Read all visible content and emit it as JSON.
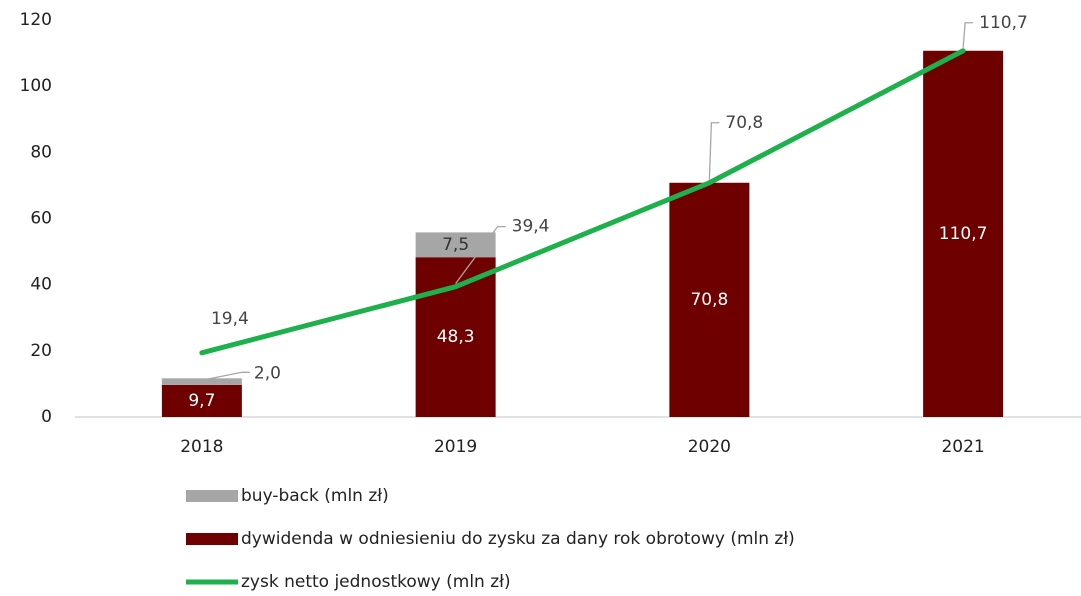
{
  "chart_data": {
    "type": "bar_line",
    "categories": [
      "2018",
      "2019",
      "2020",
      "2021"
    ],
    "series": [
      {
        "name": "buy-back (mln zł)",
        "type": "bar",
        "color": "#a6a6a6",
        "values": [
          2.0,
          7.5,
          null,
          null
        ],
        "value_labels": [
          "2,0",
          "7,5",
          null,
          null
        ]
      },
      {
        "name": "dywidenda w odniesieniu do zysku za dany rok obrotowy (mln zł)",
        "type": "bar",
        "color": "#6e0000",
        "values": [
          9.7,
          48.3,
          70.8,
          110.7
        ],
        "value_labels": [
          "9,7",
          "48,3",
          "70,8",
          "110,7"
        ]
      },
      {
        "name": "zysk netto jednostkowy (mln zł)",
        "type": "line",
        "color": "#1db04b",
        "values": [
          19.4,
          39.4,
          70.8,
          110.7
        ],
        "value_labels": [
          "19,4",
          "39,4",
          "70,8",
          "110,7"
        ]
      }
    ],
    "stacked": true,
    "ylim": [
      0,
      120
    ],
    "yticks": [
      0,
      20,
      40,
      60,
      80,
      100,
      120
    ],
    "grid": false,
    "legend": "bottom"
  }
}
